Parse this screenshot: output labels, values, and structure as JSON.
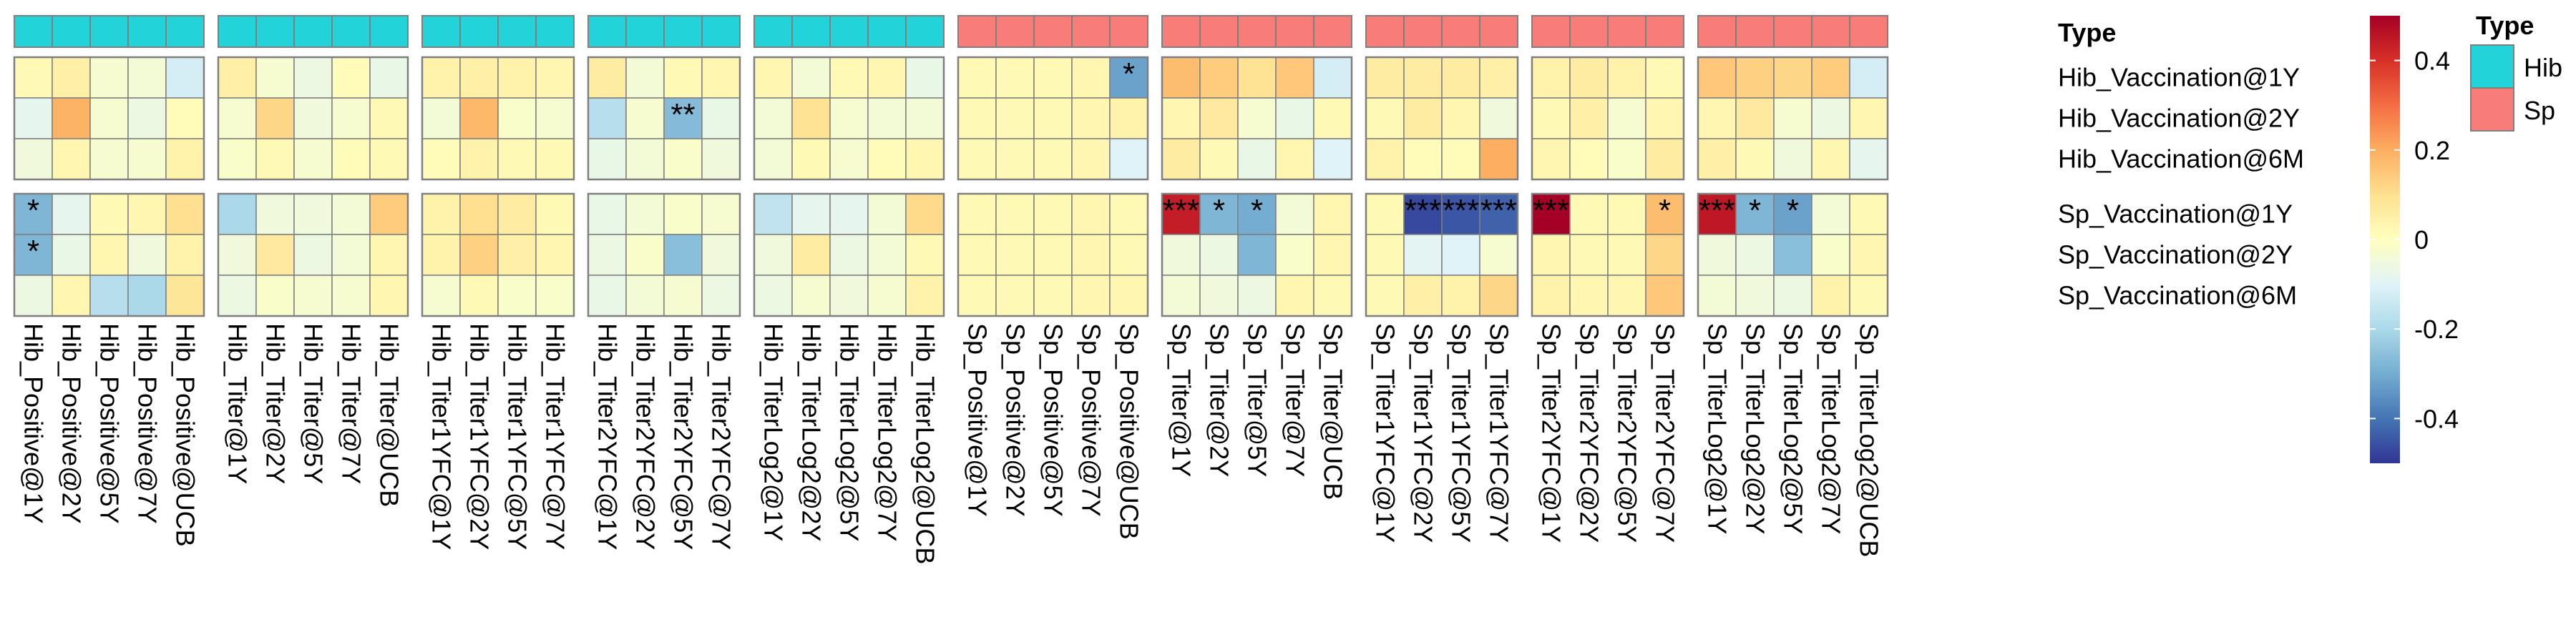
{
  "chart_data": {
    "type": "heatmap",
    "columns": [
      "Hib_Positive@1Y",
      "Hib_Positive@2Y",
      "Hib_Positive@5Y",
      "Hib_Positive@7Y",
      "Hib_Positive@UCB",
      "Hib_Titer@1Y",
      "Hib_Titer@2Y",
      "Hib_Titer@5Y",
      "Hib_Titer@7Y",
      "Hib_Titer@UCB",
      "Hib_Titer1YFC@1Y",
      "Hib_Titer1YFC@2Y",
      "Hib_Titer1YFC@5Y",
      "Hib_Titer1YFC@7Y",
      "Hib_Titer2YFC@1Y",
      "Hib_Titer2YFC@2Y",
      "Hib_Titer2YFC@5Y",
      "Hib_Titer2YFC@7Y",
      "Hib_TiterLog2@1Y",
      "Hib_TiterLog2@2Y",
      "Hib_TiterLog2@5Y",
      "Hib_TiterLog2@7Y",
      "Hib_TiterLog2@UCB",
      "Sp_Positive@1Y",
      "Sp_Positive@2Y",
      "Sp_Positive@5Y",
      "Sp_Positive@7Y",
      "Sp_Positive@UCB",
      "Sp_Titer@1Y",
      "Sp_Titer@2Y",
      "Sp_Titer@5Y",
      "Sp_Titer@7Y",
      "Sp_Titer@UCB",
      "Sp_Titer1YFC@1Y",
      "Sp_Titer1YFC@2Y",
      "Sp_Titer1YFC@5Y",
      "Sp_Titer1YFC@7Y",
      "Sp_Titer2YFC@1Y",
      "Sp_Titer2YFC@2Y",
      "Sp_Titer2YFC@5Y",
      "Sp_Titer2YFC@7Y",
      "Sp_TiterLog2@1Y",
      "Sp_TiterLog2@2Y",
      "Sp_TiterLog2@5Y",
      "Sp_TiterLog2@7Y",
      "Sp_TiterLog2@UCB"
    ],
    "column_groups": [
      5,
      5,
      4,
      4,
      5,
      5,
      5,
      4,
      4,
      5
    ],
    "column_types": [
      "Hib",
      "Hib",
      "Hib",
      "Hib",
      "Hib",
      "Sp",
      "Sp",
      "Sp",
      "Sp",
      "Sp"
    ],
    "rows": [
      "Hib_Vaccination@1Y",
      "Hib_Vaccination@2Y",
      "Hib_Vaccination@6M",
      "Sp_Vaccination@1Y",
      "Sp_Vaccination@2Y",
      "Sp_Vaccination@6M"
    ],
    "row_groups": [
      3,
      3
    ],
    "values": [
      [
        0.02,
        0.05,
        -0.03,
        -0.04,
        -0.12,
        0.05,
        -0.03,
        -0.06,
        0.01,
        -0.07,
        0.04,
        0.05,
        0.04,
        0.03,
        0.06,
        -0.04,
        0.02,
        0.03,
        0.03,
        -0.04,
        0.02,
        0.03,
        -0.07,
        0.02,
        0.02,
        0.02,
        0.03,
        -0.32,
        0.17,
        0.14,
        0.09,
        0.15,
        -0.12,
        0.06,
        0.06,
        0.06,
        0.05,
        0.04,
        0.06,
        0.04,
        0.02,
        0.15,
        0.13,
        0.12,
        0.14,
        -0.12
      ],
      [
        -0.08,
        0.19,
        -0.03,
        -0.06,
        0.01,
        -0.03,
        0.12,
        -0.05,
        -0.03,
        0.02,
        -0.04,
        0.18,
        -0.02,
        -0.03,
        -0.18,
        -0.03,
        -0.27,
        -0.07,
        -0.04,
        0.09,
        -0.03,
        -0.04,
        -0.04,
        0.02,
        0.02,
        0.02,
        0.03,
        0.04,
        0.03,
        0.07,
        -0.03,
        -0.07,
        0.02,
        0.02,
        0.06,
        0.03,
        -0.05,
        0.02,
        0.05,
        -0.03,
        0.03,
        0.03,
        0.07,
        -0.03,
        -0.06,
        0.03
      ],
      [
        -0.05,
        0.03,
        -0.03,
        -0.03,
        0.04,
        -0.02,
        0.02,
        -0.03,
        0.01,
        0.02,
        0.01,
        0.04,
        0.02,
        0.02,
        -0.07,
        -0.04,
        -0.02,
        -0.05,
        -0.04,
        0.02,
        -0.03,
        0.01,
        0.03,
        0.02,
        0.02,
        0.02,
        0.03,
        -0.1,
        0.06,
        0.02,
        -0.07,
        0.03,
        -0.1,
        0.04,
        0.01,
        0.01,
        0.2,
        0.03,
        0.01,
        -0.02,
        0.06,
        0.05,
        0.02,
        -0.05,
        0.03,
        -0.08
      ],
      [
        -0.28,
        -0.08,
        0.02,
        0.03,
        0.1,
        -0.2,
        -0.05,
        -0.05,
        -0.04,
        0.14,
        0.04,
        0.1,
        0.06,
        0.02,
        -0.07,
        -0.04,
        -0.02,
        -0.03,
        -0.16,
        -0.08,
        -0.08,
        -0.04,
        0.11,
        0.02,
        0.02,
        0.02,
        0.03,
        0.02,
        0.44,
        -0.28,
        -0.3,
        -0.04,
        0.03,
        0.02,
        -0.47,
        -0.45,
        -0.43,
        0.5,
        0.02,
        0.02,
        0.17,
        0.45,
        -0.28,
        -0.32,
        -0.04,
        0.02
      ],
      [
        -0.28,
        -0.07,
        0.03,
        -0.05,
        0.04,
        -0.05,
        0.07,
        -0.06,
        -0.04,
        0.03,
        0.04,
        0.13,
        0.05,
        0.03,
        -0.06,
        -0.02,
        -0.26,
        -0.05,
        -0.05,
        0.06,
        -0.06,
        -0.04,
        0.02,
        0.02,
        0.02,
        0.02,
        0.03,
        0.02,
        -0.05,
        -0.06,
        -0.28,
        -0.02,
        0.03,
        0.02,
        -0.09,
        -0.1,
        -0.03,
        0.03,
        0.02,
        0.02,
        0.12,
        -0.05,
        -0.06,
        -0.26,
        -0.02,
        0.03
      ],
      [
        -0.06,
        0.03,
        -0.18,
        -0.2,
        0.08,
        -0.06,
        -0.02,
        -0.03,
        -0.03,
        0.03,
        -0.03,
        0.02,
        -0.02,
        -0.02,
        -0.07,
        -0.04,
        -0.03,
        -0.06,
        -0.06,
        -0.03,
        -0.05,
        -0.03,
        0.04,
        0.02,
        0.02,
        0.02,
        0.03,
        0.03,
        -0.04,
        -0.05,
        -0.06,
        0.03,
        0.02,
        0.02,
        0.05,
        0.04,
        0.12,
        0.04,
        0.03,
        0.03,
        0.15,
        -0.04,
        -0.05,
        -0.06,
        0.04,
        0.02
      ]
    ],
    "stars": [
      {
        "row": 0,
        "col": 27,
        "text": "*"
      },
      {
        "row": 1,
        "col": 16,
        "text": "**"
      },
      {
        "row": 3,
        "col": 0,
        "text": "*"
      },
      {
        "row": 3,
        "col": 28,
        "text": "***"
      },
      {
        "row": 3,
        "col": 29,
        "text": "*"
      },
      {
        "row": 3,
        "col": 30,
        "text": "*"
      },
      {
        "row": 3,
        "col": 34,
        "text": "***"
      },
      {
        "row": 3,
        "col": 35,
        "text": "***"
      },
      {
        "row": 3,
        "col": 36,
        "text": "***"
      },
      {
        "row": 3,
        "col": 37,
        "text": "***"
      },
      {
        "row": 3,
        "col": 40,
        "text": "*"
      },
      {
        "row": 3,
        "col": 41,
        "text": "***"
      },
      {
        "row": 3,
        "col": 42,
        "text": "*"
      },
      {
        "row": 3,
        "col": 43,
        "text": "*"
      },
      {
        "row": 4,
        "col": 0,
        "text": "*"
      }
    ],
    "color_scale": {
      "range": [
        -0.5,
        0.5
      ],
      "stops": [
        "#313695",
        "#4575b4",
        "#74add1",
        "#abd9e9",
        "#e0f3f8",
        "#ffffbf",
        "#fee090",
        "#fdae61",
        "#f46d43",
        "#d73027",
        "#a50026"
      ],
      "ticks": [
        0.4,
        0.2,
        0,
        -0.2,
        -0.4
      ],
      "tick_labels": [
        "0.4",
        "0.2",
        "0",
        "-0.2",
        "-0.4"
      ]
    },
    "annotation": {
      "title": "Type",
      "colors": {
        "Hib": "#22d3d9",
        "Sp": "#f87c78"
      }
    },
    "legend": {
      "type_title": "Type",
      "items": [
        {
          "label": "Hib",
          "color": "#22d3d9"
        },
        {
          "label": "Sp",
          "color": "#f87c78"
        }
      ]
    }
  }
}
